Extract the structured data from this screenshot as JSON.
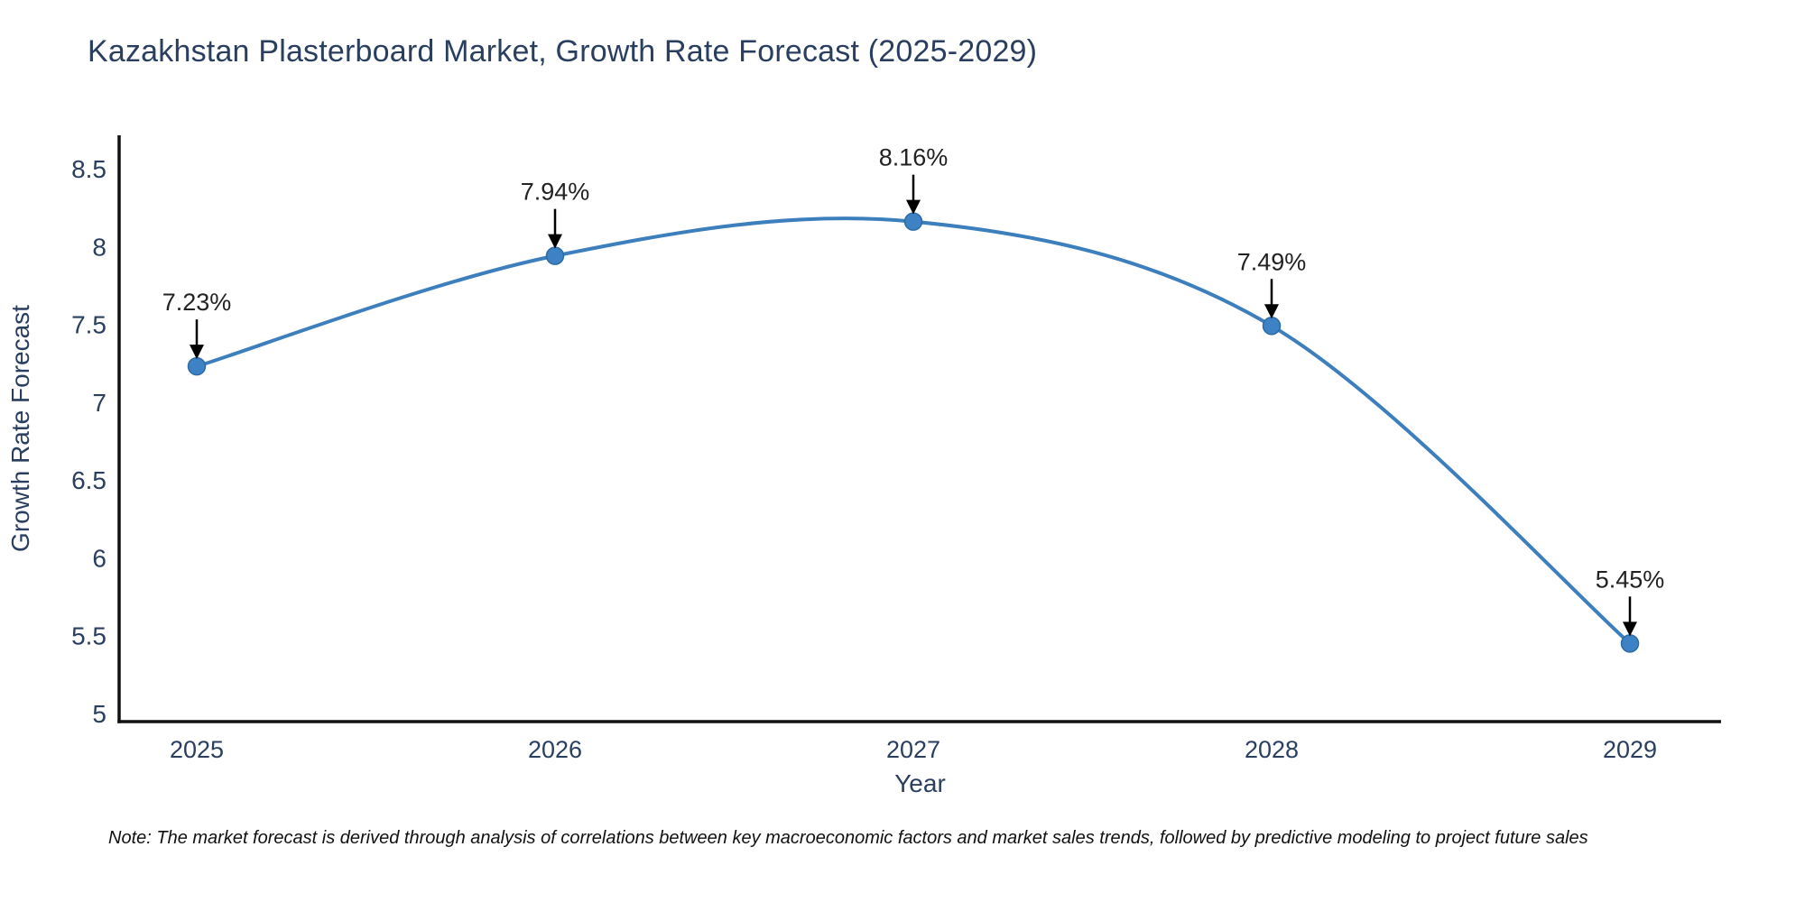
{
  "title": "Kazakhstan Plasterboard Market, Growth Rate Forecast (2025-2029)",
  "note": "Note: The market forecast is derived through analysis of correlations between key macroeconomic factors and market sales trends, followed by predictive modeling to project future sales",
  "chart_data": {
    "type": "line",
    "curve": "spline",
    "title": "Kazakhstan Plasterboard Market, Growth Rate Forecast (2025-2029)",
    "xlabel": "Year",
    "ylabel": "Growth Rate Forecast",
    "x": [
      2025,
      2026,
      2027,
      2028,
      2029
    ],
    "values": [
      7.23,
      7.94,
      8.16,
      7.49,
      5.45
    ],
    "point_labels": [
      "7.23%",
      "7.94%",
      "8.16%",
      "7.49%",
      "5.45%"
    ],
    "xtick_labels": [
      "2025",
      "2026",
      "2027",
      "2028",
      "2029"
    ],
    "ytick_values": [
      5,
      5.5,
      6,
      6.5,
      7,
      7.5,
      8,
      8.5
    ],
    "ytick_labels": [
      "5",
      "5.5",
      "6",
      "6.5",
      "7",
      "7.5",
      "8",
      "8.5"
    ],
    "ylim": [
      5,
      8.5
    ],
    "grid": false,
    "legend_position": "none",
    "annotations_have_arrows": true,
    "colors": {
      "line": "#3d7ebd",
      "marker_fill": "#3d82c4",
      "marker_edge": "#2f6ba3",
      "axis_line": "#111111",
      "tick_label": "#2a3f5f",
      "axis_title": "#2a3f5f",
      "chart_title": "#2a3f5f",
      "annotation_text": "#222222",
      "annotation_arrow": "#000000",
      "background": "#ffffff"
    }
  }
}
